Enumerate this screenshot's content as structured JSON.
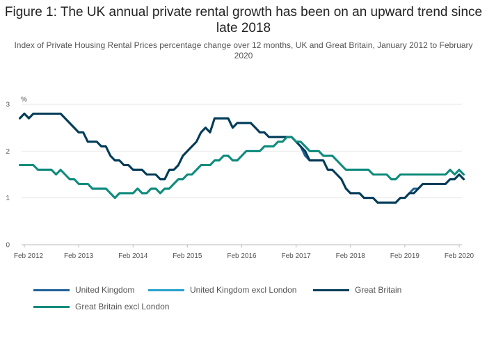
{
  "chart_data": {
    "type": "line",
    "title": "Figure 1: The UK annual private rental growth has been on an upward trend since late 2018",
    "subtitle": "Index of Private Housing Rental Prices percentage change over 12 months, UK and Great Britain, January 2012 to February 2020",
    "ylabel": "%",
    "xlabel": "",
    "ylim": [
      0,
      3
    ],
    "yticks": [
      0,
      1,
      2,
      3
    ],
    "xticks": [
      "Feb 2012",
      "Feb 2013",
      "Feb 2014",
      "Feb 2015",
      "Feb 2016",
      "Feb 2017",
      "Feb 2018",
      "Feb 2019",
      "Feb 2020"
    ],
    "x_start": "Jan 2012",
    "x_end": "Feb 2020",
    "grid": true,
    "legend_position": "bottom",
    "series": [
      {
        "name": "United Kingdom",
        "color": "#206095",
        "values": [
          2.7,
          2.8,
          2.7,
          2.8,
          2.8,
          2.8,
          2.8,
          2.8,
          2.8,
          2.8,
          2.7,
          2.6,
          2.5,
          2.4,
          2.4,
          2.2,
          2.2,
          2.2,
          2.1,
          2.1,
          1.9,
          1.8,
          1.8,
          1.7,
          1.7,
          1.6,
          1.6,
          1.6,
          1.5,
          1.5,
          1.5,
          1.4,
          1.4,
          1.6,
          1.6,
          1.7,
          1.9,
          2.0,
          2.1,
          2.2,
          2.4,
          2.5,
          2.4,
          2.7,
          2.7,
          2.7,
          2.7,
          2.5,
          2.6,
          2.6,
          2.6,
          2.6,
          2.5,
          2.4,
          2.4,
          2.3,
          2.3,
          2.3,
          2.3,
          2.3,
          2.3,
          2.2,
          2.1,
          1.9,
          1.8,
          1.8,
          1.8,
          1.8,
          1.6,
          1.6,
          1.5,
          1.4,
          1.2,
          1.1,
          1.1,
          1.1,
          1.0,
          1.0,
          1.0,
          0.9,
          0.9,
          0.9,
          0.9,
          0.9,
          1.0,
          1.0,
          1.1,
          1.2,
          1.2,
          1.3,
          1.3,
          1.3,
          1.3,
          1.3,
          1.3,
          1.4,
          1.4,
          1.5,
          1.4
        ]
      },
      {
        "name": "United Kingdom excl London",
        "color": "#27a0cc",
        "values": [
          1.7,
          1.7,
          1.7,
          1.7,
          1.6,
          1.6,
          1.6,
          1.6,
          1.5,
          1.6,
          1.5,
          1.4,
          1.4,
          1.3,
          1.3,
          1.3,
          1.2,
          1.2,
          1.2,
          1.2,
          1.1,
          1.0,
          1.1,
          1.1,
          1.1,
          1.1,
          1.2,
          1.1,
          1.1,
          1.2,
          1.2,
          1.1,
          1.2,
          1.2,
          1.3,
          1.4,
          1.4,
          1.5,
          1.5,
          1.6,
          1.7,
          1.7,
          1.7,
          1.8,
          1.8,
          1.9,
          1.9,
          1.8,
          1.8,
          1.9,
          2.0,
          2.0,
          2.0,
          2.0,
          2.1,
          2.1,
          2.1,
          2.2,
          2.2,
          2.3,
          2.3,
          2.2,
          2.2,
          2.1,
          2.0,
          2.0,
          2.0,
          1.9,
          1.9,
          1.9,
          1.8,
          1.7,
          1.6,
          1.6,
          1.6,
          1.6,
          1.6,
          1.6,
          1.5,
          1.5,
          1.5,
          1.5,
          1.4,
          1.4,
          1.5,
          1.5,
          1.5,
          1.5,
          1.5,
          1.5,
          1.5,
          1.5,
          1.5,
          1.5,
          1.5,
          1.6,
          1.5,
          1.6,
          1.5
        ]
      },
      {
        "name": "Great Britain",
        "color": "#003c57",
        "values": [
          2.7,
          2.8,
          2.7,
          2.8,
          2.8,
          2.8,
          2.8,
          2.8,
          2.8,
          2.8,
          2.7,
          2.6,
          2.5,
          2.4,
          2.4,
          2.2,
          2.2,
          2.2,
          2.1,
          2.1,
          1.9,
          1.8,
          1.8,
          1.7,
          1.7,
          1.6,
          1.6,
          1.6,
          1.5,
          1.5,
          1.5,
          1.4,
          1.4,
          1.6,
          1.6,
          1.7,
          1.9,
          2.0,
          2.1,
          2.2,
          2.4,
          2.5,
          2.4,
          2.7,
          2.7,
          2.7,
          2.7,
          2.5,
          2.6,
          2.6,
          2.6,
          2.6,
          2.5,
          2.4,
          2.4,
          2.3,
          2.3,
          2.3,
          2.3,
          2.3,
          2.3,
          2.2,
          2.1,
          2.0,
          1.8,
          1.8,
          1.8,
          1.8,
          1.6,
          1.6,
          1.5,
          1.4,
          1.2,
          1.1,
          1.1,
          1.1,
          1.0,
          1.0,
          1.0,
          0.9,
          0.9,
          0.9,
          0.9,
          0.9,
          1.0,
          1.0,
          1.1,
          1.1,
          1.2,
          1.3,
          1.3,
          1.3,
          1.3,
          1.3,
          1.3,
          1.4,
          1.4,
          1.5,
          1.4
        ]
      },
      {
        "name": "Great Britain excl London",
        "color": "#118c7b",
        "values": [
          1.7,
          1.7,
          1.7,
          1.7,
          1.6,
          1.6,
          1.6,
          1.6,
          1.5,
          1.6,
          1.5,
          1.4,
          1.4,
          1.3,
          1.3,
          1.3,
          1.2,
          1.2,
          1.2,
          1.2,
          1.1,
          1.0,
          1.1,
          1.1,
          1.1,
          1.1,
          1.2,
          1.1,
          1.1,
          1.2,
          1.2,
          1.1,
          1.2,
          1.2,
          1.3,
          1.4,
          1.4,
          1.5,
          1.5,
          1.6,
          1.7,
          1.7,
          1.7,
          1.8,
          1.8,
          1.9,
          1.9,
          1.8,
          1.8,
          1.9,
          2.0,
          2.0,
          2.0,
          2.0,
          2.1,
          2.1,
          2.1,
          2.2,
          2.2,
          2.3,
          2.3,
          2.2,
          2.2,
          2.1,
          2.0,
          2.0,
          2.0,
          1.9,
          1.9,
          1.9,
          1.8,
          1.7,
          1.6,
          1.6,
          1.6,
          1.6,
          1.6,
          1.6,
          1.5,
          1.5,
          1.5,
          1.5,
          1.4,
          1.4,
          1.5,
          1.5,
          1.5,
          1.5,
          1.5,
          1.5,
          1.5,
          1.5,
          1.5,
          1.5,
          1.5,
          1.6,
          1.5,
          1.6,
          1.5
        ]
      }
    ]
  }
}
